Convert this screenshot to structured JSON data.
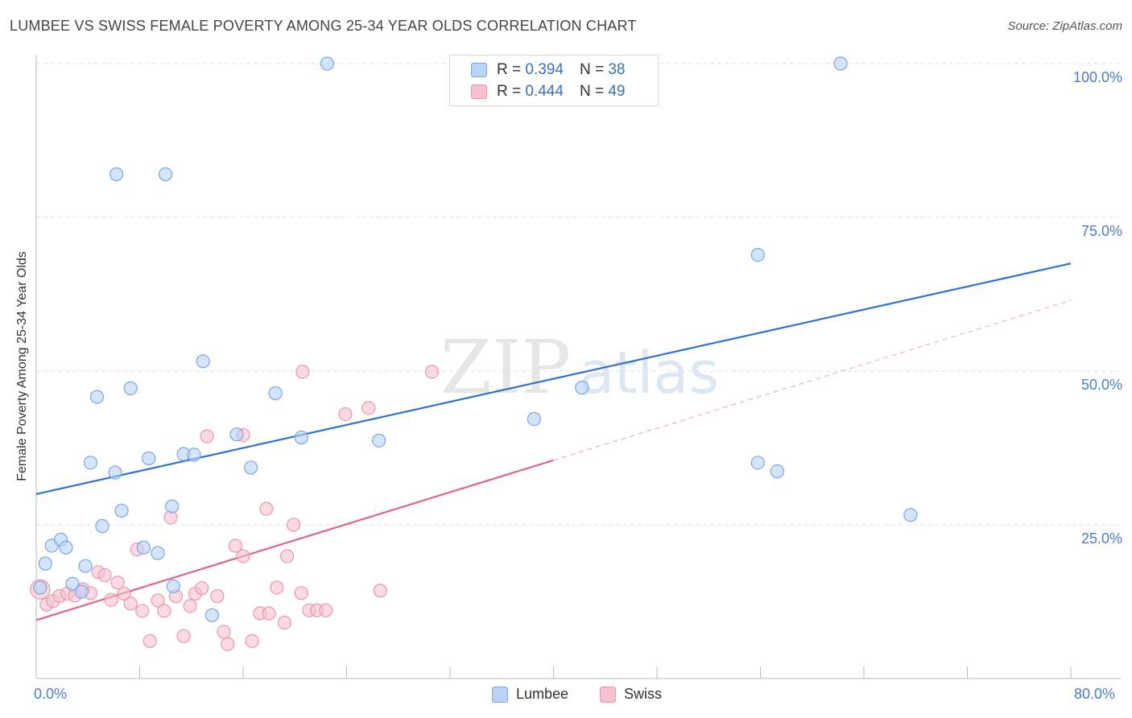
{
  "title": "LUMBEE VS SWISS FEMALE POVERTY AMONG 25-34 YEAR OLDS CORRELATION CHART",
  "source": "Source: ZipAtlas.com",
  "watermark": {
    "zip": "ZIP",
    "atlas": "atlas"
  },
  "legend": {
    "lumbee": {
      "r_label": "R =",
      "r_value": "0.394",
      "n_label": "N =",
      "n_value": "38"
    },
    "swiss": {
      "r_label": "R =",
      "r_value": "0.444",
      "n_label": "N =",
      "n_value": "49"
    }
  },
  "bottom_legend": {
    "lumbee": "Lumbee",
    "swiss": "Swiss"
  },
  "colors": {
    "lumbee_fill": "#b9d3f5",
    "lumbee_stroke": "#7aa6e3",
    "lumbee_line": "#2f72cf",
    "swiss_fill": "#f7c1d0",
    "swiss_stroke": "#ec95ae",
    "swiss_line": "#e0638b",
    "grid": "#e0e0e0",
    "tick_text": "#4a7cc9"
  },
  "chart_data": {
    "type": "scatter",
    "title": "LUMBEE VS SWISS FEMALE POVERTY AMONG 25-34 YEAR OLDS CORRELATION CHART",
    "xlabel": "",
    "ylabel": "Female Poverty Among 25-34 Year Olds",
    "xlim": [
      0,
      80
    ],
    "ylim": [
      0,
      102
    ],
    "x_tick_labels": [
      "0.0%",
      "80.0%"
    ],
    "y_ticks": [
      25,
      50,
      75,
      100
    ],
    "y_tick_labels": [
      "25.0%",
      "50.0%",
      "75.0%",
      "100.0%"
    ],
    "series": [
      {
        "name": "Lumbee",
        "r": 0.394,
        "n": 38,
        "trend": {
          "x0": 0,
          "y0": 30,
          "x1": 80,
          "y1": 67.5
        },
        "points": [
          [
            0.3,
            14.8
          ],
          [
            0.7,
            18.7
          ],
          [
            1.2,
            21.6
          ],
          [
            1.9,
            22.6
          ],
          [
            2.3,
            21.3
          ],
          [
            2.8,
            15.4
          ],
          [
            3.5,
            14.1
          ],
          [
            3.8,
            18.3
          ],
          [
            4.2,
            35.1
          ],
          [
            4.7,
            45.8
          ],
          [
            5.1,
            24.8
          ],
          [
            6.1,
            33.5
          ],
          [
            6.6,
            27.3
          ],
          [
            7.3,
            47.2
          ],
          [
            8.3,
            21.3
          ],
          [
            8.7,
            35.8
          ],
          [
            9.4,
            20.4
          ],
          [
            10.5,
            28.0
          ],
          [
            10.6,
            15.0
          ],
          [
            11.4,
            36.5
          ],
          [
            12.2,
            36.4
          ],
          [
            12.9,
            51.6
          ],
          [
            13.6,
            10.3
          ],
          [
            15.5,
            39.7
          ],
          [
            16.6,
            34.3
          ],
          [
            18.5,
            46.4
          ],
          [
            20.5,
            39.2
          ],
          [
            26.5,
            38.7
          ],
          [
            38.5,
            42.2
          ],
          [
            42.2,
            47.3
          ],
          [
            55.8,
            35.1
          ],
          [
            57.3,
            33.7
          ],
          [
            67.6,
            26.6
          ],
          [
            55.8,
            68.9
          ],
          [
            6.2,
            82.0
          ],
          [
            10.0,
            82.0
          ],
          [
            22.5,
            100.0
          ],
          [
            62.2,
            100.0
          ]
        ]
      },
      {
        "name": "Swiss",
        "r": 0.444,
        "n": 49,
        "trend": {
          "x0": 0,
          "y0": 9.5,
          "x1": 40,
          "y1": 35.5
        },
        "trend_dashed": {
          "x0": 40,
          "y0": 35.5,
          "x1": 80,
          "y1": 61.5
        },
        "points": [
          [
            0.3,
            14.5
          ],
          [
            0.8,
            12.0
          ],
          [
            1.3,
            12.6
          ],
          [
            1.8,
            13.4
          ],
          [
            2.4,
            13.8
          ],
          [
            3.0,
            13.5
          ],
          [
            3.6,
            14.5
          ],
          [
            4.2,
            13.9
          ],
          [
            4.8,
            17.3
          ],
          [
            5.3,
            16.8
          ],
          [
            5.8,
            12.8
          ],
          [
            6.3,
            15.6
          ],
          [
            6.8,
            13.8
          ],
          [
            7.3,
            12.2
          ],
          [
            7.8,
            21.0
          ],
          [
            8.2,
            11.0
          ],
          [
            8.8,
            6.1
          ],
          [
            9.4,
            12.7
          ],
          [
            9.9,
            11.0
          ],
          [
            10.4,
            26.2
          ],
          [
            10.8,
            13.4
          ],
          [
            11.4,
            6.9
          ],
          [
            11.9,
            11.8
          ],
          [
            12.3,
            13.8
          ],
          [
            12.8,
            14.7
          ],
          [
            13.2,
            39.4
          ],
          [
            14.0,
            13.4
          ],
          [
            14.5,
            7.6
          ],
          [
            14.8,
            5.6
          ],
          [
            15.4,
            21.6
          ],
          [
            16.0,
            39.6
          ],
          [
            16.0,
            19.9
          ],
          [
            16.7,
            6.1
          ],
          [
            17.3,
            10.6
          ],
          [
            17.8,
            27.6
          ],
          [
            18.6,
            14.8
          ],
          [
            19.2,
            9.1
          ],
          [
            19.4,
            19.9
          ],
          [
            19.9,
            25.0
          ],
          [
            20.5,
            13.9
          ],
          [
            21.1,
            11.1
          ],
          [
            21.7,
            11.1
          ],
          [
            22.4,
            11.1
          ],
          [
            20.6,
            49.9
          ],
          [
            23.9,
            43.0
          ],
          [
            25.7,
            44.0
          ],
          [
            26.6,
            14.3
          ],
          [
            30.6,
            49.9
          ],
          [
            18.0,
            10.6
          ]
        ]
      }
    ]
  }
}
